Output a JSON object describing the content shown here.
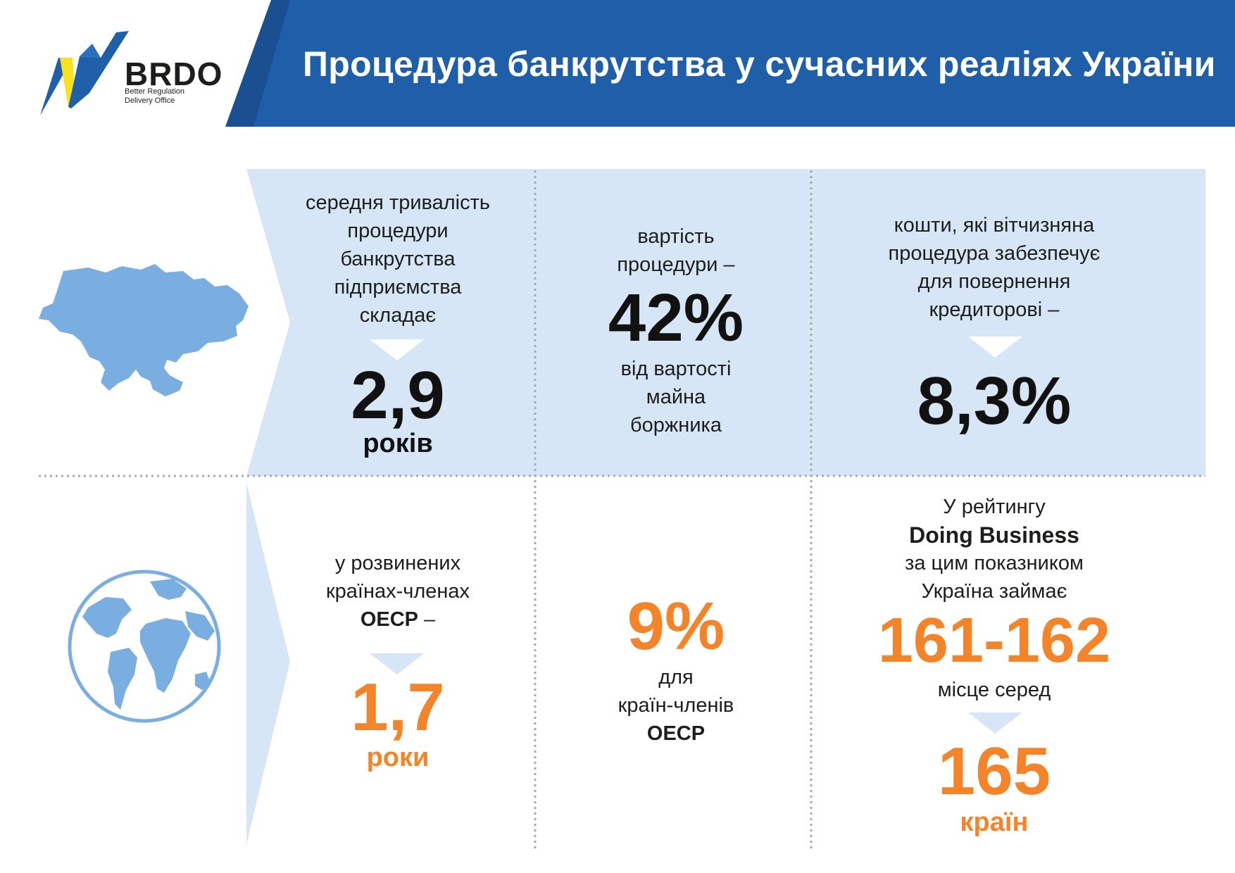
{
  "header": {
    "title": "Процедура банкрутства у сучасних реаліях України",
    "brand_color": "#1f5ea8",
    "accent_color": "#2c6fc0"
  },
  "logo": {
    "name": "BRDO",
    "subtitle_line1": "Better Regulation",
    "subtitle_line2": "Delivery Office",
    "colors": [
      "#1f5ea8",
      "#f4e31e"
    ]
  },
  "colors": {
    "panel_bg": "#d6e6f6",
    "map_fill": "#7aaee0",
    "orange": "#f4842a",
    "divider": "#a9a9a9"
  },
  "ukraine_row": {
    "icon": "ukraine-map-icon",
    "duration": {
      "label_lines": [
        "середня тривалість",
        "процедури",
        "банкрутства",
        "підприємства",
        "складає"
      ],
      "value": "2,9",
      "unit": "років"
    },
    "cost": {
      "label_lines": [
        "вартість",
        "процедури –"
      ],
      "value": "42%",
      "after_lines": [
        "від вартості",
        "майна",
        "боржника"
      ]
    },
    "recovery": {
      "label_lines": [
        "кошти, які вітчизняна",
        "процедура забезпечує",
        "для повернення",
        "кредиторові –"
      ],
      "value": "8,3%"
    }
  },
  "world_row": {
    "icon": "globe-icon",
    "duration": {
      "label_lines": [
        "у розвинених",
        "країнах-членах"
      ],
      "label_bold": "ОЕСР",
      "label_dash": " –",
      "value": "1,7",
      "unit": "роки"
    },
    "cost": {
      "value": "9%",
      "after_lines": [
        "для",
        "країн-членів"
      ],
      "after_bold": "ОЕСР"
    },
    "ranking": {
      "line1": "У рейтингу",
      "line2_bold": "Doing Business",
      "line3": "за цим показником",
      "line4": "Україна займає",
      "value": "161-162",
      "after": "місце серед",
      "total": "165",
      "unit": "країн"
    }
  }
}
